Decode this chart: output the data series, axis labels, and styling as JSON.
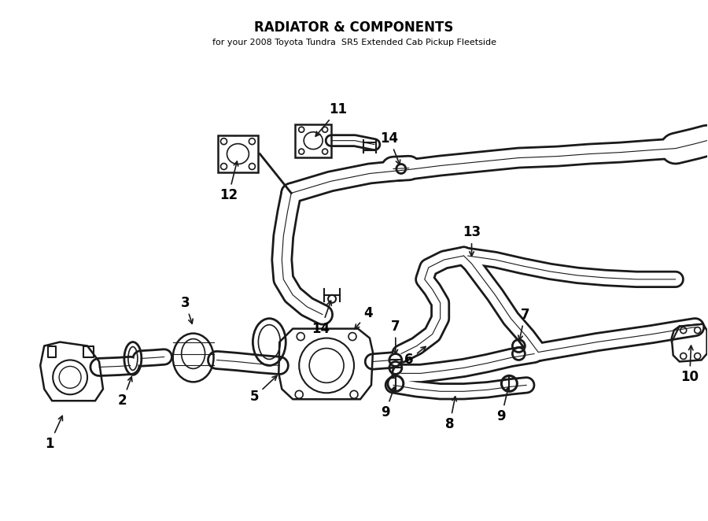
{
  "title": "RADIATOR & COMPONENTS",
  "subtitle": "for your 2008 Toyota Tundra  SR5 Extended Cab Pickup Fleetside",
  "background_color": "#ffffff",
  "line_color": "#1a1a1a",
  "text_color": "#000000",
  "fig_width": 9.0,
  "fig_height": 6.62,
  "dpi": 100
}
